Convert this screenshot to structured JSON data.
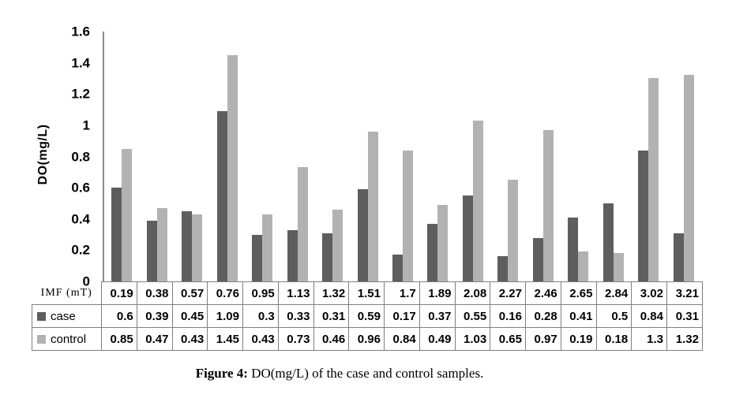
{
  "figure": {
    "caption_prefix": "Figure 4:",
    "caption_text": " DO(mg/L) of the case and control samples."
  },
  "chart_data": {
    "type": "bar",
    "title": "",
    "ylabel": "DO(mg/L)",
    "xlabel": "IMF (mT)",
    "ylim": [
      0,
      1.6
    ],
    "yticks": [
      0,
      0.2,
      0.4,
      0.6,
      0.8,
      1,
      1.2,
      1.4,
      1.6
    ],
    "grid": false,
    "legend_position": "table-left",
    "categories": [
      "0.19",
      "0.38",
      "0.57",
      "0.76",
      "0.95",
      "1.13",
      "1.32",
      "1.51",
      "1.7",
      "1.89",
      "2.08",
      "2.27",
      "2.46",
      "2.65",
      "2.84",
      "3.02",
      "3.21"
    ],
    "series": [
      {
        "name": "case",
        "color": "#5e5e5e",
        "values": [
          0.6,
          0.39,
          0.45,
          1.09,
          0.3,
          0.33,
          0.31,
          0.59,
          0.17,
          0.37,
          0.55,
          0.16,
          0.28,
          0.41,
          0.5,
          0.84,
          0.31
        ]
      },
      {
        "name": "control",
        "color": "#b2b2b2",
        "values": [
          0.85,
          0.47,
          0.43,
          1.45,
          0.43,
          0.73,
          0.46,
          0.96,
          0.84,
          0.49,
          1.03,
          0.65,
          0.97,
          0.19,
          0.18,
          1.3,
          1.32
        ]
      }
    ],
    "colors": {
      "case_bar": "#5e5e5e",
      "control_bar": "#b2b2b2",
      "table_border": "#7f7f7f",
      "axis_line": "#8a8a8a",
      "text": "#000000"
    }
  }
}
